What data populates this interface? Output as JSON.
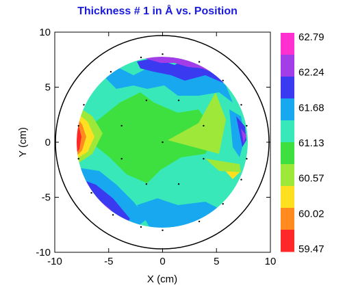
{
  "chart_data": {
    "type": "heatmap",
    "title": "Thickness # 1 in Å vs. Position",
    "xlabel": "X (cm)",
    "ylabel": "Y (cm)",
    "xlim": [
      -10,
      10
    ],
    "ylim": [
      -10,
      10
    ],
    "x_ticks": [
      "-10",
      "-5",
      "0",
      "5",
      "10"
    ],
    "y_ticks": [
      "10",
      "5",
      "0",
      "-5",
      "-10"
    ],
    "wafer_radius": 10,
    "measured_region_radius": 8,
    "grid": false,
    "legend": {
      "placement": "right",
      "levels": [
        "62.79",
        "62.24",
        "61.68",
        "61.13",
        "60.57",
        "60.02",
        "59.47"
      ],
      "colors": [
        "#ff30d0",
        "#a23de8",
        "#3a3af0",
        "#18a8f0",
        "#38e8b8",
        "#3ee040",
        "#9ee83a",
        "#ffe020",
        "#ff8a20",
        "#ff2828"
      ]
    },
    "measurement_points": [
      [
        0,
        0
      ],
      [
        -1.5,
        3.8
      ],
      [
        1.5,
        3.8
      ],
      [
        -3.8,
        1.5
      ],
      [
        3.8,
        1.5
      ],
      [
        -3.8,
        -1.5
      ],
      [
        3.8,
        -1.5
      ],
      [
        -1.5,
        -3.8
      ],
      [
        1.5,
        -3.8
      ],
      [
        -2,
        7.7
      ],
      [
        0,
        8
      ],
      [
        3.4,
        7.3
      ],
      [
        5.6,
        5.6
      ],
      [
        7.3,
        3.4
      ],
      [
        7.8,
        1.5
      ],
      [
        7.8,
        -1.5
      ],
      [
        7.3,
        -3.4
      ],
      [
        5.6,
        -5.6
      ],
      [
        3.4,
        -7.2
      ],
      [
        0,
        -8
      ],
      [
        -2,
        -7.7
      ],
      [
        -4.6,
        -6.6
      ],
      [
        -6.6,
        -4.6
      ],
      [
        -7.8,
        -1.5
      ],
      [
        -7.8,
        1.5
      ],
      [
        -7.3,
        3.4
      ],
      [
        -4.8,
        6.4
      ]
    ]
  }
}
